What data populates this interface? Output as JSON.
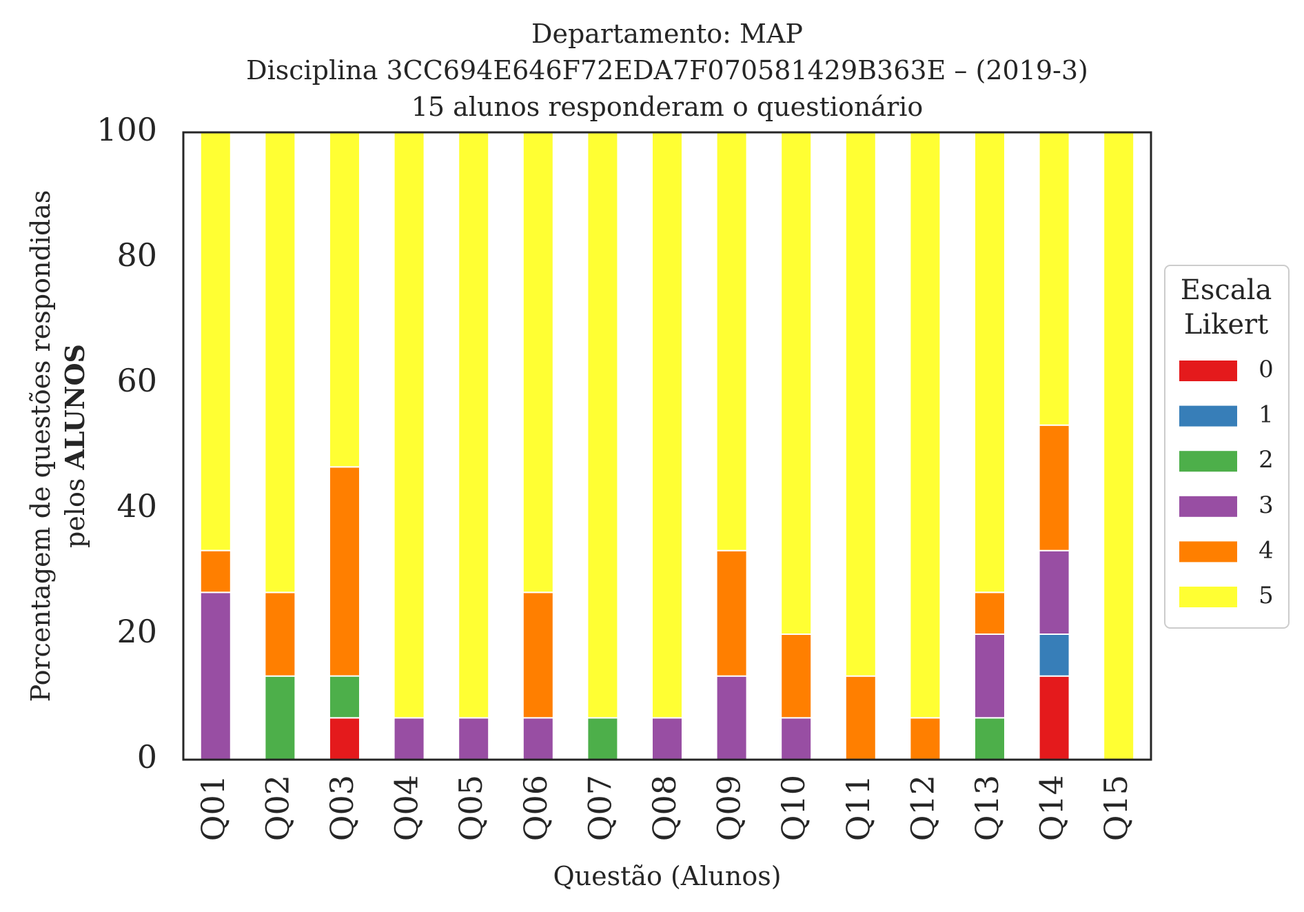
{
  "chart_data": {
    "type": "bar",
    "stacked": true,
    "title_lines": [
      "Departamento: MAP",
      "Disciplina 3CC694E646F72EDA7F070581429B363E – (2019-3)",
      "15 alunos responderam o questionário"
    ],
    "xlabel": "Questão (Alunos)",
    "ylabel_lines": [
      "Porcentagem de questões respondidas",
      "pelos",
      "ALUNOS"
    ],
    "ylim": [
      0,
      100
    ],
    "yticks": [
      "0",
      "20",
      "40",
      "60",
      "80",
      "100"
    ],
    "grid": false,
    "categories": [
      "Q01",
      "Q02",
      "Q03",
      "Q04",
      "Q05",
      "Q06",
      "Q07",
      "Q08",
      "Q09",
      "Q10",
      "Q11",
      "Q12",
      "Q13",
      "Q14",
      "Q15"
    ],
    "series": [
      {
        "name": "0",
        "color": "#e41a1c",
        "values": [
          0,
          0,
          6.67,
          0,
          0,
          0,
          0,
          0,
          0,
          0,
          0,
          0,
          0,
          13.33,
          0
        ]
      },
      {
        "name": "1",
        "color": "#377eb8",
        "values": [
          0,
          0,
          0,
          0,
          0,
          0,
          0,
          0,
          0,
          0,
          0,
          0,
          0,
          6.67,
          0
        ]
      },
      {
        "name": "2",
        "color": "#4daf4a",
        "values": [
          0,
          13.33,
          6.67,
          0,
          0,
          0,
          6.67,
          0,
          0,
          0,
          0,
          0,
          6.67,
          0,
          0
        ]
      },
      {
        "name": "3",
        "color": "#984ea3",
        "values": [
          26.67,
          0,
          0,
          6.67,
          6.67,
          6.67,
          0,
          6.67,
          13.33,
          6.67,
          0,
          0,
          13.33,
          13.33,
          0
        ]
      },
      {
        "name": "4",
        "color": "#ff7f00",
        "values": [
          6.67,
          13.33,
          33.33,
          0,
          0,
          20,
          0,
          0,
          20,
          13.33,
          13.33,
          6.67,
          6.67,
          20,
          0
        ]
      },
      {
        "name": "5",
        "color": "#ffff33",
        "values": [
          66.67,
          73.33,
          53.33,
          93.33,
          93.33,
          73.33,
          93.33,
          93.33,
          66.67,
          80,
          86.67,
          93.33,
          73.33,
          46.67,
          100
        ]
      }
    ],
    "legend": {
      "title_lines": [
        "Escala",
        "Likert"
      ],
      "placement": "right"
    }
  }
}
